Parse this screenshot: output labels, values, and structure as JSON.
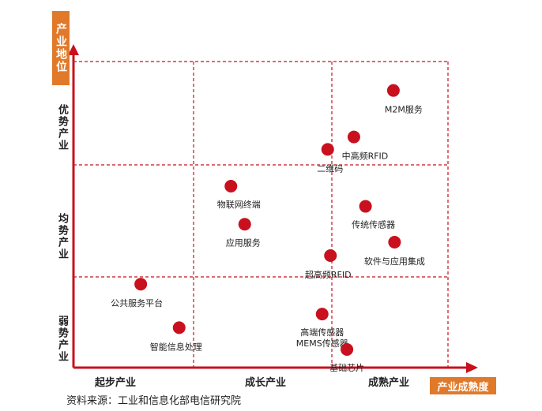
{
  "chart_data": {
    "type": "scatter",
    "xlabel": "产业成熟度",
    "ylabel": "产业地位",
    "x_categories": [
      "起步产业",
      "成长产业",
      "成熟产业"
    ],
    "y_categories": [
      "弱势产业",
      "均势产业",
      "优势产业"
    ],
    "xlim": [
      0,
      3
    ],
    "ylim": [
      0,
      3
    ],
    "grid": true,
    "points": [
      {
        "label": "M2M服务",
        "x": 2.53,
        "y": 2.72
      },
      {
        "label": "中高频RFID",
        "x": 2.19,
        "y": 2.27
      },
      {
        "label": "二维码",
        "x": 1.97,
        "y": 2.15
      },
      {
        "label": "物联网终端",
        "x": 1.27,
        "y": 1.81
      },
      {
        "label": "传统传感器",
        "x": 2.29,
        "y": 1.63
      },
      {
        "label": "应用服务",
        "x": 1.37,
        "y": 1.47
      },
      {
        "label": "软件与应用集成",
        "x": 2.54,
        "y": 1.31
      },
      {
        "label": "超高频RFID",
        "x": 1.99,
        "y": 1.19
      },
      {
        "label": "公共服务平台",
        "x": 0.56,
        "y": 0.92
      },
      {
        "label": "高端传感器\nMEMS传感器",
        "x": 1.93,
        "y": 0.59
      },
      {
        "label": "智能信息处理",
        "x": 0.88,
        "y": 0.44
      },
      {
        "label": "基础芯片",
        "x": 2.13,
        "y": 0.2
      }
    ]
  },
  "source_text": "资料来源：工业和信息化部电信研究院",
  "colors": {
    "point": "#c8101e",
    "grid": "#c8101e",
    "axis": "#c8101e",
    "label_box": "#e07a2a"
  }
}
